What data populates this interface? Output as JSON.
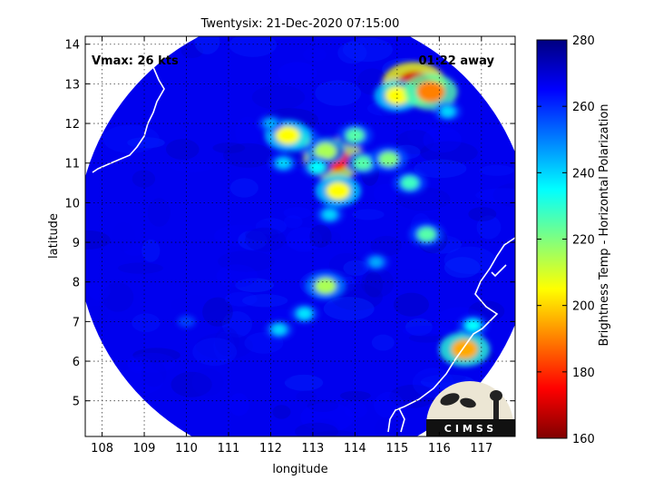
{
  "chart_data": {
    "type": "heatmap",
    "title": "Twentysix: 21-Dec-2020 07:15:00",
    "xlabel": "longitude",
    "ylabel": "latitude",
    "xlim": [
      107.6,
      117.8
    ],
    "ylim": [
      4.1,
      14.2
    ],
    "xticks": [
      "108",
      "109",
      "110",
      "111",
      "112",
      "113",
      "114",
      "115",
      "116",
      "117"
    ],
    "yticks": [
      "5",
      "6",
      "7",
      "8",
      "9",
      "10",
      "11",
      "12",
      "13",
      "14"
    ],
    "grid": true,
    "annotations": {
      "vmax": "Vmax: 26 kts",
      "time_away": "01:22 away"
    },
    "colorbar": {
      "label": "Brightness Temp - Horizontal Polarization",
      "range": [
        160,
        280
      ],
      "ticks": [
        "160",
        "180",
        "200",
        "220",
        "240",
        "260",
        "280"
      ],
      "colormap": "jet"
    },
    "swath": {
      "center": [
        112.8,
        9.1
      ],
      "radius_deg": 5.4
    },
    "background_value": 267,
    "features": [
      {
        "lon": 115.4,
        "lat": 13.0,
        "value": 170
      },
      {
        "lon": 115.0,
        "lat": 12.7,
        "value": 205
      },
      {
        "lon": 115.8,
        "lat": 12.8,
        "value": 190
      },
      {
        "lon": 113.5,
        "lat": 11.1,
        "value": 175
      },
      {
        "lon": 113.3,
        "lat": 11.3,
        "value": 215
      },
      {
        "lon": 112.7,
        "lat": 11.6,
        "value": 220
      },
      {
        "lon": 112.4,
        "lat": 11.7,
        "value": 205
      },
      {
        "lon": 113.6,
        "lat": 10.3,
        "value": 205
      },
      {
        "lon": 113.1,
        "lat": 10.9,
        "value": 235
      },
      {
        "lon": 114.2,
        "lat": 11.0,
        "value": 225
      },
      {
        "lon": 114.8,
        "lat": 11.1,
        "value": 220
      },
      {
        "lon": 114.0,
        "lat": 11.7,
        "value": 225
      },
      {
        "lon": 115.3,
        "lat": 10.5,
        "value": 228
      },
      {
        "lon": 112.3,
        "lat": 11.0,
        "value": 240
      },
      {
        "lon": 113.4,
        "lat": 9.7,
        "value": 240
      },
      {
        "lon": 115.7,
        "lat": 9.2,
        "value": 225
      },
      {
        "lon": 113.3,
        "lat": 7.9,
        "value": 215
      },
      {
        "lon": 112.8,
        "lat": 7.2,
        "value": 238
      },
      {
        "lon": 112.2,
        "lat": 6.8,
        "value": 240
      },
      {
        "lon": 116.6,
        "lat": 6.3,
        "value": 195
      },
      {
        "lon": 116.8,
        "lat": 6.9,
        "value": 235
      },
      {
        "lon": 112.0,
        "lat": 12.0,
        "value": 245
      },
      {
        "lon": 114.5,
        "lat": 8.5,
        "value": 245
      },
      {
        "lon": 116.2,
        "lat": 12.3,
        "value": 240
      },
      {
        "lon": 110.0,
        "lat": 7.0,
        "value": 258
      }
    ],
    "logo_text": "CIMSS"
  }
}
